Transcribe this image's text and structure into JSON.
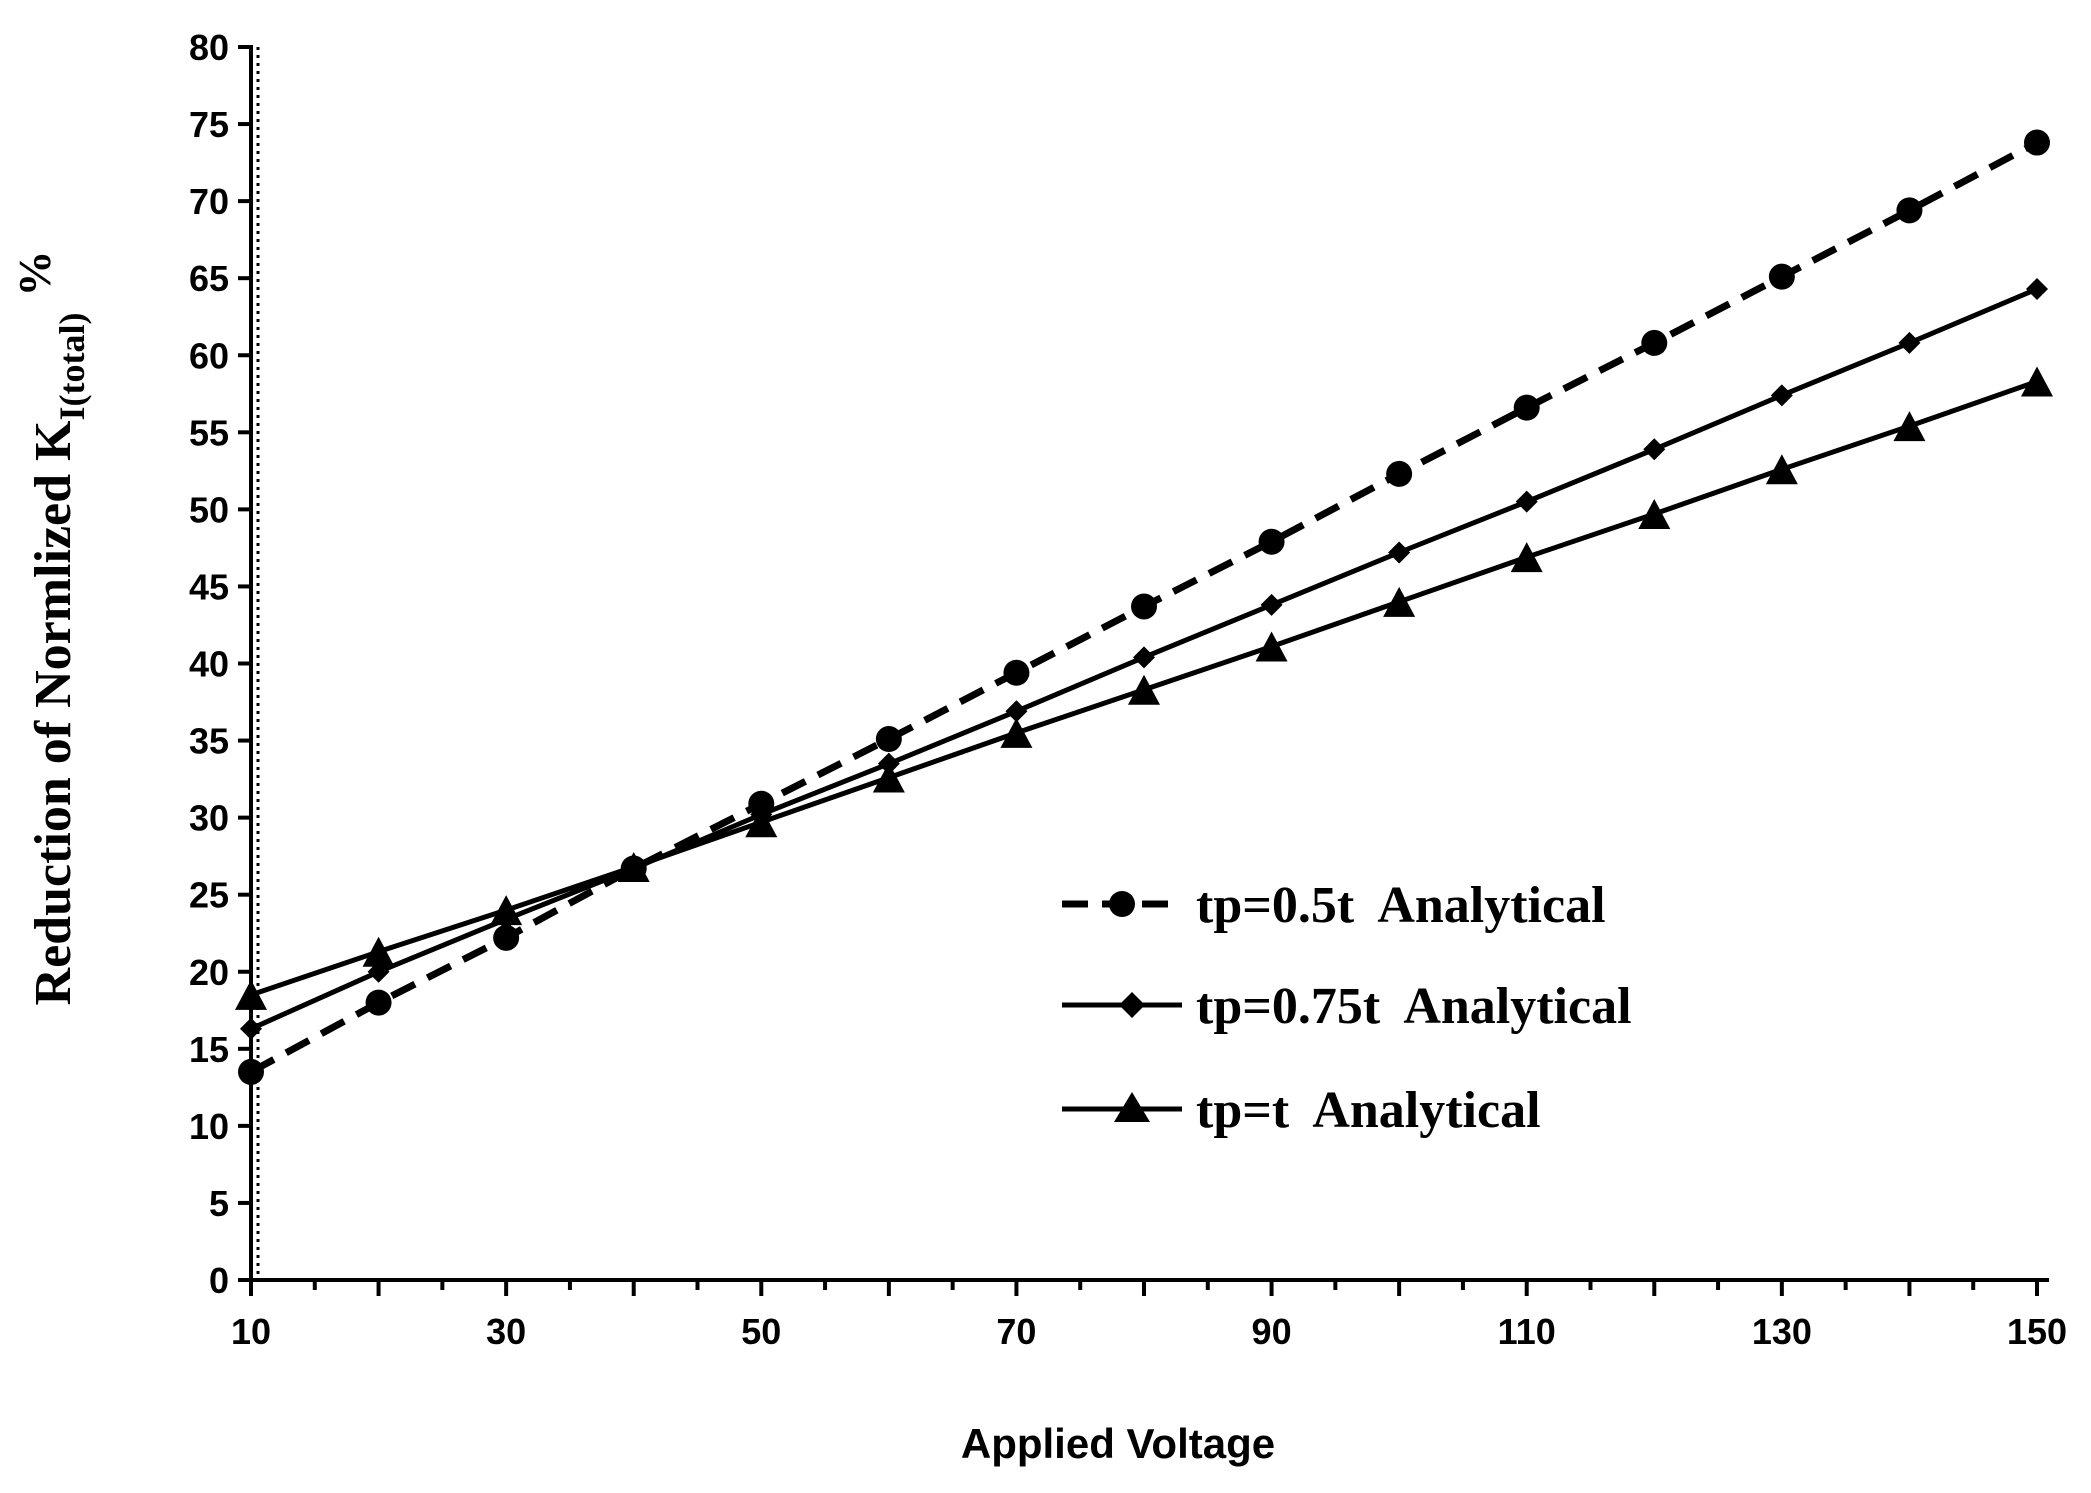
{
  "chart_data": {
    "type": "line",
    "title": "",
    "xlabel": "Applied Voltage",
    "ylabel": {
      "prefix": "Reduction of Normlized K",
      "subscript": "I(total)",
      "suffix": "%"
    },
    "xlim": [
      10,
      150
    ],
    "ylim": [
      0,
      80
    ],
    "x_ticks": [
      10,
      30,
      50,
      70,
      90,
      110,
      130,
      150
    ],
    "y_ticks": [
      0,
      5,
      10,
      15,
      20,
      25,
      30,
      35,
      40,
      45,
      50,
      55,
      60,
      65,
      70,
      75,
      80
    ],
    "x": [
      10,
      20,
      30,
      40,
      50,
      60,
      70,
      80,
      90,
      100,
      110,
      120,
      130,
      140,
      150
    ],
    "legend_position": "center-right",
    "series": [
      {
        "name": "tp=0.5t  Analytical",
        "marker": "circle",
        "line_style": "dashed",
        "values": [
          13.5,
          18.0,
          22.2,
          26.7,
          30.9,
          35.1,
          39.4,
          43.7,
          47.9,
          52.3,
          56.6,
          60.8,
          65.1,
          69.4,
          73.8
        ]
      },
      {
        "name": "tp=0.75t  Analytical",
        "marker": "diamond",
        "line_style": "solid",
        "values": [
          16.3,
          20.0,
          23.4,
          26.7,
          30.2,
          33.5,
          36.9,
          40.4,
          43.8,
          47.2,
          50.5,
          53.9,
          57.4,
          60.8,
          64.3
        ]
      },
      {
        "name": "tp=t  Analytical",
        "marker": "triangle",
        "line_style": "solid",
        "values": [
          18.5,
          21.3,
          24.0,
          26.8,
          29.7,
          32.6,
          35.5,
          38.3,
          41.1,
          44.0,
          46.9,
          49.7,
          52.6,
          55.4,
          58.3
        ]
      }
    ]
  }
}
